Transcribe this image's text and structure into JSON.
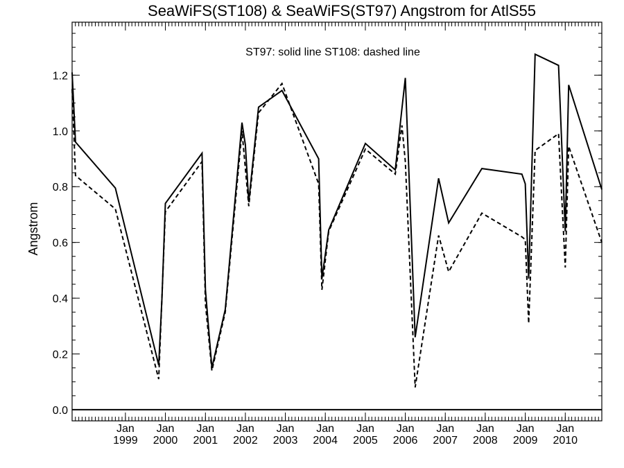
{
  "chart_data": {
    "type": "line",
    "title": "SeaWiFS(ST108) & SeaWiFS(ST97)  Angstrom for AtlS55",
    "annotation": "ST97: solid line   ST108: dashed line",
    "xlabel": "",
    "ylabel": "Angstrom",
    "xlim": [
      "1997-09-01",
      "2010-12-01"
    ],
    "ylim": [
      -0.04,
      1.39
    ],
    "yticks": [
      0.0,
      0.2,
      0.4,
      0.6,
      0.8,
      1.0,
      1.2
    ],
    "ytick_labels": [
      "0.0",
      "0.2",
      "0.4",
      "0.6",
      "0.8",
      "1.0",
      "1.2"
    ],
    "xticks": [
      {
        "month": "Jan",
        "year": "1999",
        "date": "1999-01-01"
      },
      {
        "month": "Jan",
        "year": "2000",
        "date": "2000-01-01"
      },
      {
        "month": "Jan",
        "year": "2001",
        "date": "2001-01-01"
      },
      {
        "month": "Jan",
        "year": "2002",
        "date": "2002-01-01"
      },
      {
        "month": "Jan",
        "year": "2003",
        "date": "2003-01-01"
      },
      {
        "month": "Jan",
        "year": "2004",
        "date": "2004-01-01"
      },
      {
        "month": "Jan",
        "year": "2005",
        "date": "2005-01-01"
      },
      {
        "month": "Jan",
        "year": "2006",
        "date": "2006-01-01"
      },
      {
        "month": "Jan",
        "year": "2007",
        "date": "2007-01-01"
      },
      {
        "month": "Jan",
        "year": "2008",
        "date": "2008-01-01"
      },
      {
        "month": "Jan",
        "year": "2009",
        "date": "2009-01-01"
      },
      {
        "month": "Jan",
        "year": "2010",
        "date": "2010-01-01"
      }
    ],
    "reference_line": {
      "y": 0.0
    },
    "series": [
      {
        "name": "ST97",
        "style": "solid",
        "color": "#000000",
        "x": [
          "1997-09-01",
          "1997-10-02",
          "1998-10-01",
          "1999-11-01",
          "1999-12-01",
          "2000-01-01",
          "2000-12-01",
          "2001-01-01",
          "2001-03-01",
          "2001-07-01",
          "2001-12-01",
          "2002-01-01",
          "2002-02-01",
          "2002-05-01",
          "2002-12-01",
          "2003-11-01",
          "2003-12-01",
          "2004-02-01",
          "2005-01-01",
          "2005-10-01",
          "2005-12-01",
          "2006-01-01",
          "2006-04-01",
          "2006-11-01",
          "2007-02-01",
          "2007-12-01",
          "2008-12-01",
          "2009-01-01",
          "2009-02-01",
          "2009-04-01",
          "2009-11-01",
          "2010-01-01",
          "2010-02-01",
          "2010-12-01"
        ],
        "y": [
          1.21,
          0.96,
          0.795,
          0.16,
          0.4,
          0.74,
          0.92,
          0.43,
          0.15,
          0.36,
          1.03,
          0.95,
          0.745,
          1.085,
          1.145,
          0.9,
          0.47,
          0.645,
          0.955,
          0.86,
          1.08,
          1.19,
          0.26,
          0.83,
          0.67,
          0.865,
          0.845,
          0.81,
          0.47,
          1.275,
          1.235,
          0.64,
          1.165,
          0.79
        ]
      },
      {
        "name": "ST108",
        "style": "dashed",
        "color": "#000000",
        "x": [
          "1997-09-01",
          "1997-10-02",
          "1998-10-01",
          "1999-11-01",
          "2000-01-01",
          "2000-12-01",
          "2001-01-01",
          "2001-03-01",
          "2001-07-01",
          "2001-12-01",
          "2002-02-01",
          "2002-05-01",
          "2002-12-01",
          "2003-11-01",
          "2003-12-01",
          "2004-02-01",
          "2005-01-01",
          "2005-10-01",
          "2005-12-01",
          "2006-01-01",
          "2006-04-01",
          "2006-11-01",
          "2007-02-01",
          "2007-12-01",
          "2008-12-01",
          "2009-01-01",
          "2009-02-01",
          "2009-04-01",
          "2009-11-01",
          "2010-01-01",
          "2010-02-01",
          "2010-12-01"
        ],
        "y": [
          1.15,
          0.84,
          0.72,
          0.11,
          0.71,
          0.89,
          0.38,
          0.14,
          0.35,
          1.0,
          0.73,
          1.065,
          1.17,
          0.81,
          0.43,
          0.64,
          0.935,
          0.845,
          1.02,
          0.89,
          0.08,
          0.625,
          0.495,
          0.705,
          0.62,
          0.61,
          0.31,
          0.93,
          0.99,
          0.51,
          0.945,
          0.6
        ]
      }
    ]
  }
}
